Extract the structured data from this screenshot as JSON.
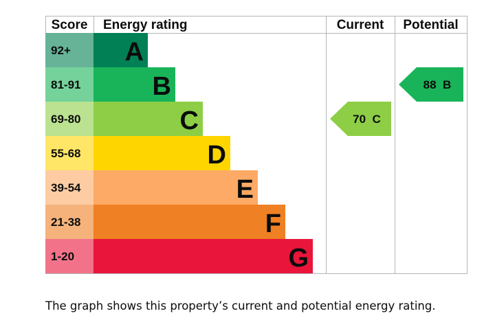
{
  "chart_data": {
    "type": "bar",
    "headers": {
      "score": "Score",
      "rating": "Energy rating",
      "current": "Current",
      "potential": "Potential"
    },
    "bands": [
      {
        "score": "92+",
        "letter": "A",
        "color": "#008054",
        "score_bg": "#66b398"
      },
      {
        "score": "81-91",
        "letter": "B",
        "color": "#19b459",
        "score_bg": "#75d29b"
      },
      {
        "score": "69-80",
        "letter": "C",
        "color": "#8dce46",
        "score_bg": "#bbe290"
      },
      {
        "score": "55-68",
        "letter": "D",
        "color": "#ffd500",
        "score_bg": "#ffe666"
      },
      {
        "score": "39-54",
        "letter": "E",
        "color": "#fcaa65",
        "score_bg": "#fdcca3"
      },
      {
        "score": "21-38",
        "letter": "F",
        "color": "#ef8023",
        "score_bg": "#f5b37b"
      },
      {
        "score": "1-20",
        "letter": "G",
        "color": "#e9153b",
        "score_bg": "#f27389"
      }
    ],
    "current": {
      "score": 70,
      "letter": "C",
      "label": "70 C",
      "color": "#8dce46"
    },
    "potential": {
      "score": 88,
      "letter": "B",
      "label": "88 B",
      "color": "#19b459"
    }
  },
  "caption": "The graph shows this property’s current and potential energy rating."
}
